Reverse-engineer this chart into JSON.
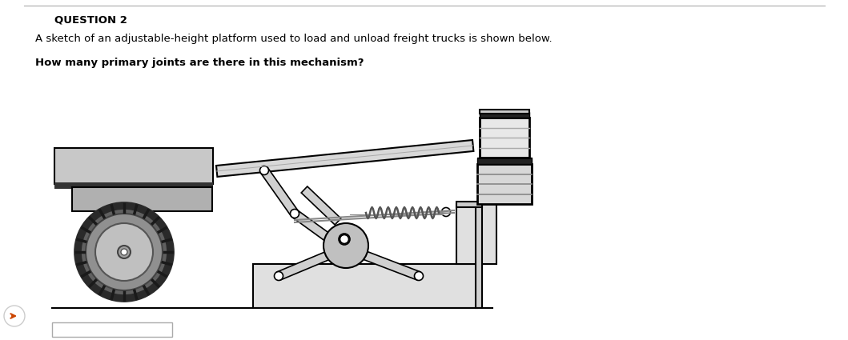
{
  "title": "QUESTION 2",
  "line1": "A sketch of an adjustable-height platform used to load and unload freight trucks is shown below.",
  "line2": "How many primary joints are there in this mechanism?",
  "bg_color": "#ffffff",
  "text_color": "#000000",
  "light_gray": "#d0d0d0",
  "mid_gray": "#b0b0b0",
  "dark_gray": "#404040",
  "border_color": "#000000",
  "fig_w": 10.59,
  "fig_h": 4.25,
  "dpi": 100
}
